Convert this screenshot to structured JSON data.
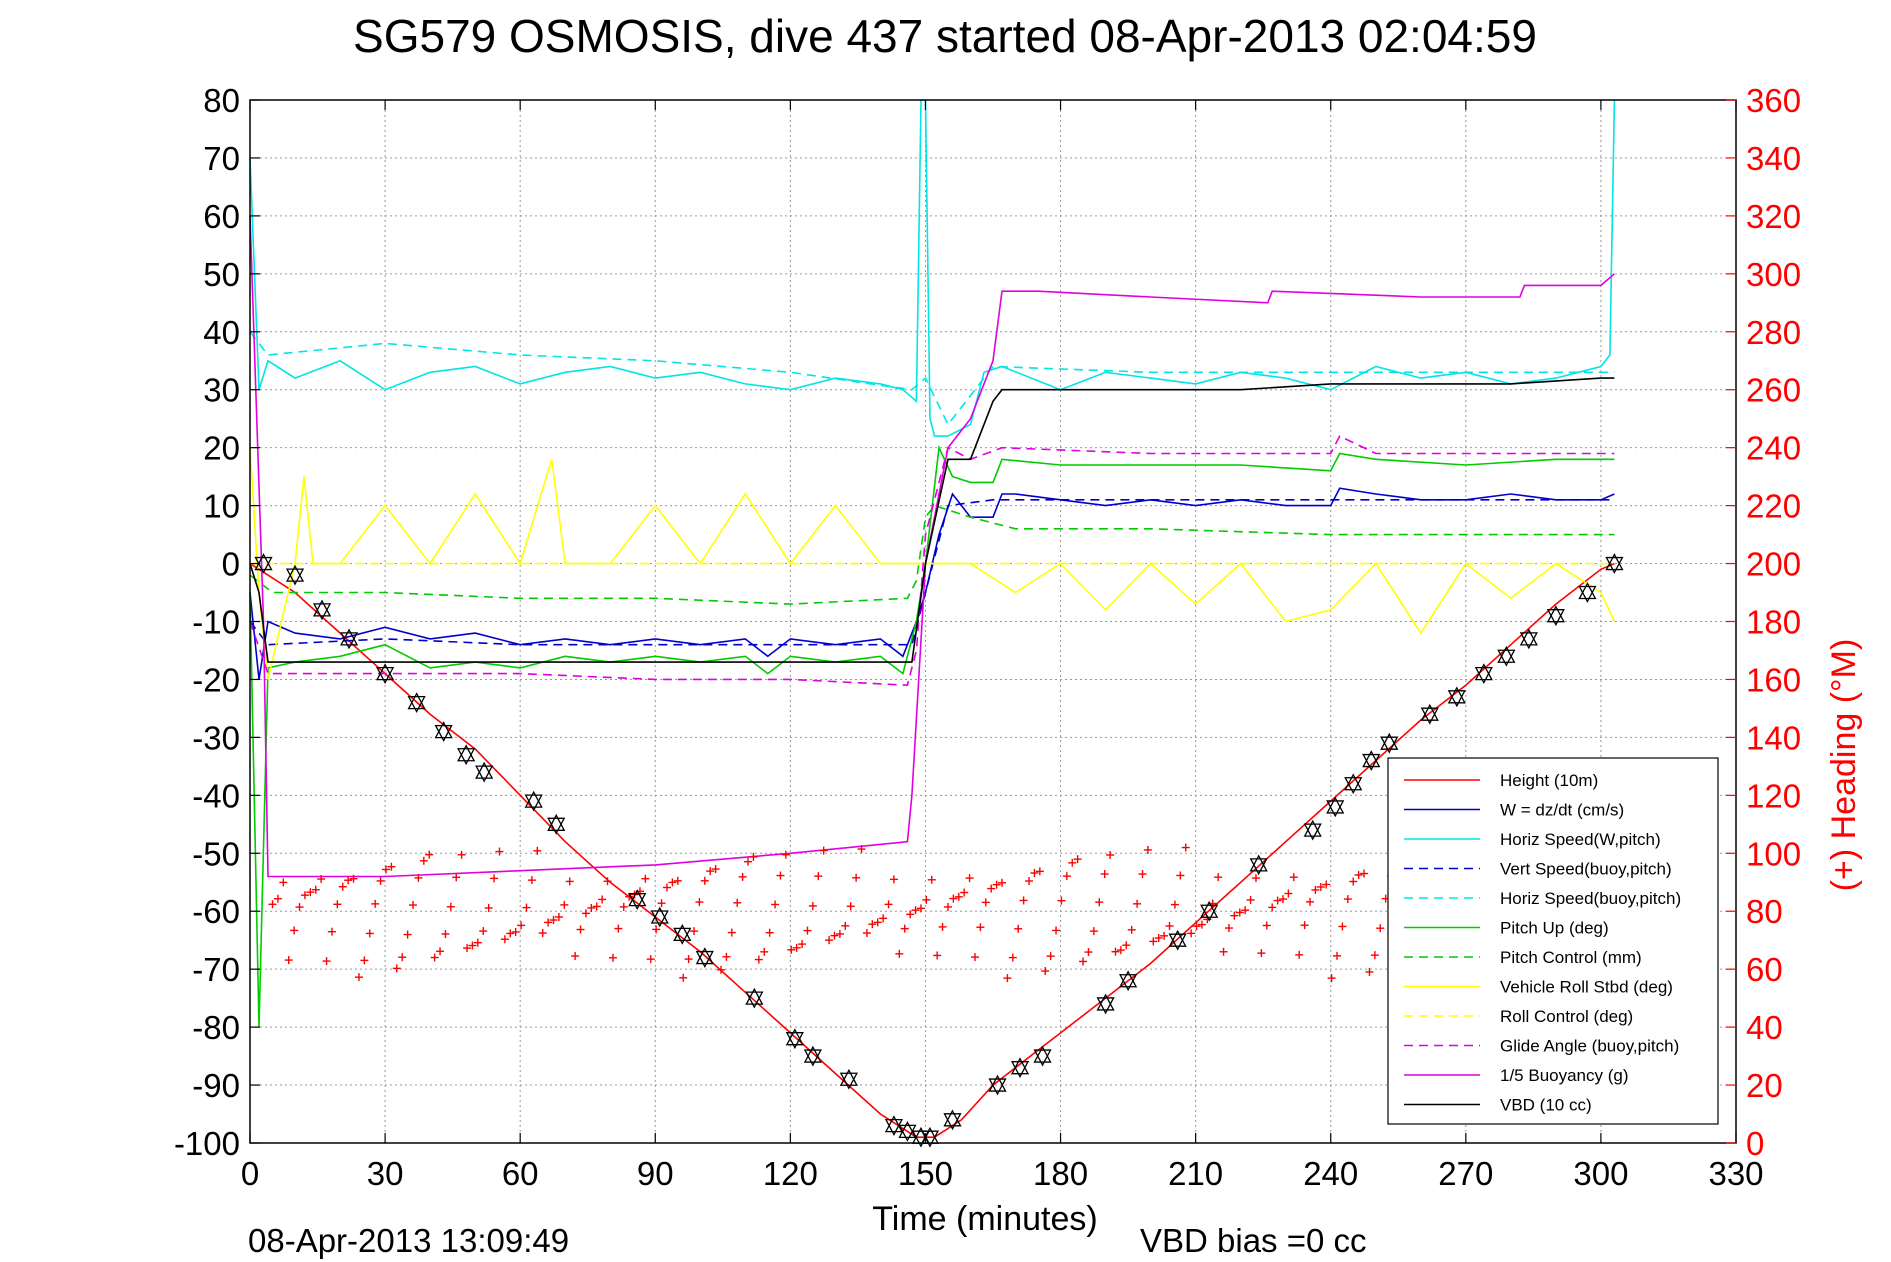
{
  "chart_data": {
    "type": "line",
    "title": "SG579 OSMOSIS, dive 437 started 08-Apr-2013 02:04:59",
    "xlabel": "Time (minutes)",
    "ylabel": "",
    "y2label": "(+) Heading (°M)",
    "footer_left": "08-Apr-2013 13:09:49",
    "footer_right": "VBD bias =0 cc",
    "xlim": [
      0,
      330
    ],
    "ylim": [
      -100,
      80
    ],
    "y2lim": [
      0,
      360
    ],
    "xticks": [
      "0",
      "30",
      "60",
      "90",
      "120",
      "150",
      "180",
      "210",
      "240",
      "270",
      "300",
      "330"
    ],
    "yticks": [
      "80",
      "70",
      "60",
      "50",
      "40",
      "30",
      "20",
      "10",
      "0",
      "-10",
      "-20",
      "-30",
      "-40",
      "-50",
      "-60",
      "-70",
      "-80",
      "-90",
      "-100"
    ],
    "y2ticks": [
      "360",
      "340",
      "320",
      "300",
      "280",
      "260",
      "240",
      "220",
      "200",
      "180",
      "160",
      "140",
      "120",
      "100",
      "80",
      "60",
      "40",
      "20",
      "0"
    ],
    "grid": true,
    "legend_position": "bottom-right",
    "colors": {
      "height": "#ff0000",
      "w": "#0000cc",
      "horiz": "#00e5e5",
      "pitch": "#00cc00",
      "roll": "#ffff00",
      "glide": "#e000e0",
      "buoy": "#e000e0",
      "vbd": "#000000",
      "heading": "#ff0000"
    },
    "series": [
      {
        "name": "Height (10m)",
        "color": "#ff0000",
        "style": "solid",
        "x": [
          0,
          2,
          10,
          20,
          30,
          40,
          50,
          60,
          70,
          80,
          90,
          100,
          110,
          120,
          130,
          140,
          148,
          152,
          158,
          165,
          175,
          185,
          200,
          210,
          220,
          230,
          240,
          250,
          260,
          270,
          280,
          290,
          300,
          303
        ],
        "y": [
          0,
          -1,
          -5,
          -12,
          -19,
          -26,
          -32,
          -40,
          -48,
          -55,
          -61,
          -67,
          -74,
          -81,
          -88,
          -95,
          -99,
          -99,
          -96,
          -90,
          -84,
          -78,
          -69,
          -62,
          -55,
          -48,
          -41,
          -34,
          -27,
          -21,
          -14,
          -7,
          -1,
          0
        ]
      },
      {
        "name": "W = dz/dt (cm/s)",
        "color": "#0000cc",
        "style": "solid",
        "x": [
          0,
          2,
          4,
          10,
          20,
          30,
          40,
          50,
          60,
          70,
          80,
          90,
          100,
          110,
          115,
          120,
          130,
          140,
          145,
          148,
          150,
          153,
          156,
          160,
          165,
          167,
          170,
          180,
          190,
          200,
          210,
          220,
          230,
          240,
          242,
          250,
          260,
          270,
          280,
          290,
          300,
          303
        ],
        "y": [
          -5,
          -20,
          -10,
          -12,
          -13,
          -11,
          -13,
          -12,
          -14,
          -13,
          -14,
          -13,
          -14,
          -13,
          -16,
          -13,
          -14,
          -13,
          -16,
          -10,
          -5,
          5,
          12,
          8,
          8,
          12,
          12,
          11,
          10,
          11,
          10,
          11,
          10,
          10,
          13,
          12,
          11,
          11,
          12,
          11,
          11,
          12
        ]
      },
      {
        "name": "Horiz Speed(W,pitch)",
        "color": "#00e5e5",
        "style": "solid",
        "x": [
          0,
          2,
          4,
          10,
          20,
          30,
          40,
          50,
          60,
          70,
          80,
          90,
          100,
          110,
          120,
          130,
          140,
          145,
          148,
          149,
          150,
          151,
          152,
          155,
          160,
          163,
          167,
          180,
          190,
          200,
          210,
          220,
          230,
          240,
          250,
          260,
          270,
          280,
          290,
          300,
          302,
          303
        ],
        "y": [
          70,
          30,
          35,
          32,
          35,
          30,
          33,
          34,
          31,
          33,
          34,
          32,
          33,
          31,
          30,
          32,
          31,
          30,
          28,
          80,
          80,
          25,
          22,
          22,
          24,
          33,
          34,
          30,
          33,
          32,
          31,
          33,
          32,
          30,
          34,
          32,
          33,
          31,
          32,
          34,
          36,
          80
        ]
      },
      {
        "name": "Vert Speed(buoy,pitch)",
        "color": "#0000cc",
        "style": "dashed",
        "x": [
          0,
          4,
          30,
          60,
          90,
          120,
          147,
          150,
          155,
          165,
          200,
          240,
          270,
          303
        ],
        "y": [
          -10,
          -14,
          -13,
          -14,
          -14,
          -14,
          -14,
          -5,
          10,
          11,
          11,
          11,
          11,
          11
        ]
      },
      {
        "name": "Horiz Speed(buoy,pitch)",
        "color": "#00e5e5",
        "style": "dashed",
        "x": [
          0,
          4,
          30,
          60,
          90,
          120,
          147,
          150,
          155,
          165,
          200,
          240,
          270,
          303
        ],
        "y": [
          40,
          36,
          38,
          36,
          35,
          33,
          30,
          32,
          24,
          34,
          33,
          33,
          33,
          33
        ]
      },
      {
        "name": "Pitch Up (deg)",
        "color": "#00cc00",
        "style": "solid",
        "x": [
          0,
          2,
          4,
          10,
          20,
          30,
          40,
          50,
          60,
          70,
          80,
          90,
          100,
          110,
          115,
          120,
          130,
          140,
          145,
          148,
          150,
          153,
          156,
          160,
          165,
          167,
          180,
          200,
          220,
          240,
          242,
          250,
          270,
          290,
          303
        ],
        "y": [
          -5,
          -80,
          -18,
          -17,
          -16,
          -14,
          -18,
          -17,
          -18,
          -16,
          -17,
          -16,
          -17,
          -16,
          -19,
          -16,
          -17,
          -16,
          -19,
          -10,
          0,
          20,
          15,
          14,
          14,
          18,
          17,
          17,
          17,
          16,
          19,
          18,
          17,
          18,
          18
        ]
      },
      {
        "name": "Pitch Control (mm)",
        "color": "#00cc00",
        "style": "dashed",
        "x": [
          0,
          5,
          30,
          60,
          90,
          120,
          146,
          148,
          150,
          152,
          160,
          170,
          200,
          240,
          270,
          303
        ],
        "y": [
          -2,
          -5,
          -5,
          -6,
          -6,
          -7,
          -6,
          -3,
          8,
          10,
          8,
          6,
          6,
          5,
          5,
          5
        ]
      },
      {
        "name": "Vehicle Roll Stbd (deg)",
        "color": "#ffff00",
        "style": "solid",
        "x": [
          0,
          2,
          4,
          10,
          12,
          14,
          20,
          30,
          40,
          50,
          60,
          67,
          70,
          80,
          90,
          100,
          110,
          120,
          130,
          140,
          150,
          160,
          170,
          180,
          190,
          200,
          210,
          220,
          230,
          240,
          250,
          260,
          270,
          280,
          290,
          300,
          303
        ],
        "y": [
          20,
          -5,
          -20,
          0,
          15,
          0,
          0,
          10,
          0,
          12,
          0,
          18,
          0,
          0,
          10,
          0,
          12,
          0,
          10,
          0,
          0,
          0,
          -5,
          0,
          -8,
          0,
          -7,
          0,
          -10,
          -8,
          0,
          -12,
          0,
          -6,
          0,
          -5,
          -10
        ]
      },
      {
        "name": "Roll Control (deg)",
        "color": "#ffff00",
        "style": "dashed",
        "x": [
          0,
          5,
          40,
          80,
          120,
          150,
          180,
          220,
          260,
          303
        ],
        "y": [
          0,
          0,
          0,
          0,
          0,
          0,
          0,
          0,
          0,
          0
        ]
      },
      {
        "name": "Glide Angle (buoy,pitch)",
        "color": "#e000e0",
        "style": "dashed",
        "x": [
          0,
          4,
          30,
          60,
          90,
          120,
          146,
          148,
          150,
          155,
          160,
          167,
          200,
          240,
          242,
          250,
          270,
          303
        ],
        "y": [
          -10,
          -19,
          -19,
          -19,
          -20,
          -20,
          -21,
          -15,
          5,
          20,
          18,
          20,
          19,
          19,
          22,
          19,
          19,
          19
        ]
      },
      {
        "name": "1/5 Buoyancy (g)",
        "color": "#e000e0",
        "style": "solid",
        "x": [
          0,
          3,
          4,
          30,
          60,
          90,
          120,
          146,
          147,
          150,
          155,
          160,
          165,
          167,
          175,
          200,
          226,
          227,
          260,
          282,
          283,
          300,
          303
        ],
        "y": [
          60,
          -10,
          -54,
          -54,
          -53,
          -52,
          -50,
          -48,
          -40,
          0,
          20,
          25,
          35,
          47,
          47,
          46,
          45,
          47,
          46,
          46,
          48,
          48,
          50
        ]
      },
      {
        "name": "VBD (10 cc)",
        "color": "#000000",
        "style": "solid",
        "x": [
          0,
          2,
          4,
          30,
          60,
          90,
          120,
          145,
          147,
          150,
          155,
          160,
          165,
          167,
          175,
          200,
          220,
          240,
          260,
          280,
          300,
          303
        ],
        "y": [
          0,
          -5,
          -17,
          -17,
          -17,
          -17,
          -17,
          -17,
          -17,
          0,
          18,
          18,
          28,
          30,
          30,
          30,
          30,
          31,
          31,
          31,
          32,
          32
        ]
      }
    ],
    "markers": {
      "name": "dive profile markers",
      "x": [
        3,
        10,
        16,
        22,
        30,
        37,
        43,
        48,
        52,
        63,
        68,
        86,
        91,
        96,
        101,
        112,
        121,
        125,
        133,
        143,
        146,
        149,
        151,
        156,
        166,
        171,
        176,
        190,
        195,
        206,
        213,
        224,
        236,
        241,
        245,
        249,
        253,
        262,
        268,
        274,
        279,
        284,
        290,
        297,
        303
      ],
      "y": [
        0,
        -2,
        -8,
        -13,
        -19,
        -24,
        -29,
        -33,
        -36,
        -41,
        -45,
        -58,
        -61,
        -64,
        -68,
        -75,
        -82,
        -85,
        -89,
        -97,
        -98,
        -99,
        -99,
        -96,
        -90,
        -87,
        -85,
        -76,
        -72,
        -65,
        -60,
        -52,
        -46,
        -42,
        -38,
        -34,
        -31,
        -26,
        -23,
        -19,
        -16,
        -13,
        -9,
        -5,
        0
      ]
    },
    "heading": {
      "name": "(+) Heading",
      "y2_center": 80,
      "y2_amplitude": 18,
      "period_minutes": 8,
      "x_range": [
        5,
        303
      ]
    }
  },
  "legend": {
    "items": [
      {
        "label": "Height (10m)",
        "color": "#ff0000",
        "style": "solid"
      },
      {
        "label": "W = dz/dt (cm/s)",
        "color": "#0000cc",
        "style": "solid"
      },
      {
        "label": "Horiz Speed(W,pitch)",
        "color": "#00e5e5",
        "style": "solid"
      },
      {
        "label": "Vert Speed(buoy,pitch)",
        "color": "#0000cc",
        "style": "dashed"
      },
      {
        "label": "Horiz Speed(buoy,pitch)",
        "color": "#00e5e5",
        "style": "dashed"
      },
      {
        "label": "Pitch Up (deg)",
        "color": "#00cc00",
        "style": "solid"
      },
      {
        "label": "Pitch Control (mm)",
        "color": "#00cc00",
        "style": "dashed"
      },
      {
        "label": "Vehicle Roll Stbd (deg)",
        "color": "#ffff00",
        "style": "solid"
      },
      {
        "label": "Roll Control (deg)",
        "color": "#ffff00",
        "style": "dashed"
      },
      {
        "label": "Glide Angle (buoy,pitch)",
        "color": "#e000e0",
        "style": "dashed"
      },
      {
        "label": "1/5 Buoyancy (g)",
        "color": "#e000e0",
        "style": "solid"
      },
      {
        "label": "VBD (10 cc)",
        "color": "#000000",
        "style": "solid"
      }
    ]
  }
}
